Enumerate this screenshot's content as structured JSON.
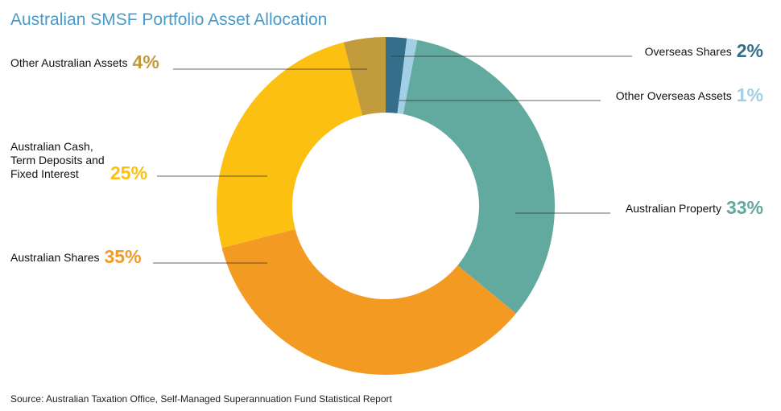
{
  "chart_data": {
    "type": "pie",
    "subtype": "donut",
    "title": "Australian SMSF Portfolio Asset Allocation",
    "source": "Source: Australian Taxation Office, Self-Managed Superannuation Fund Statistical Report",
    "slices": [
      {
        "label": "Overseas Shares",
        "value": 2,
        "value_label": "2%",
        "color": "#336e8a"
      },
      {
        "label": "Other Overseas Assets",
        "value": 1,
        "value_label": "1%",
        "color": "#a3cfe6"
      },
      {
        "label": "Australian Property",
        "value": 33,
        "value_label": "33%",
        "color": "#62a99f"
      },
      {
        "label": "Australian Shares",
        "value": 35,
        "value_label": "35%",
        "color": "#f39a23"
      },
      {
        "label": "Australian Cash, Term Deposits and Fixed Interest",
        "value": 25,
        "value_label": "25%",
        "color": "#fbc012"
      },
      {
        "label": "Other Australian Assets",
        "value": 4,
        "value_label": "4%",
        "color": "#c29b3c"
      }
    ]
  }
}
